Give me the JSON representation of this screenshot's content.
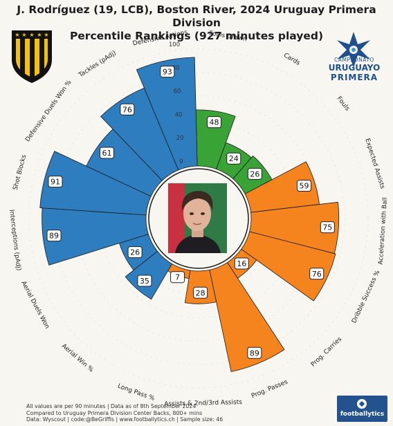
{
  "title_line1": "J. Rodríguez (19, LCB), Boston River, 2024 Uruguay Primera Division",
  "title_line2": "Percentile Rankings (927 minutes played)",
  "footer": {
    "line1": "All values are per 90 minutes | Data as of 8th September 2024",
    "line2": "Compared to Uruguay Primera Division Center Backs, 800+ mins",
    "line3": "Data: Wyscout | code:@BeGriffis | www.footballytics.ch | Sample size: 46"
  },
  "brand": "footballytics",
  "league_logo": {
    "line1": "CAMPEONATO",
    "line2": "URUGUAYO",
    "line3": "PRIMERA"
  },
  "colors": {
    "defending": "#2e7dbf",
    "discipline": "#3aa335",
    "possession": "#f5841f",
    "crest_black": "#111111",
    "crest_yellow": "#f4c20d",
    "league_blue": "#1f4f8e"
  },
  "icons": {
    "club_crest": "shield-crest-icon",
    "league_logo": "star-burst-logo-icon",
    "brand_ball": "football-icon",
    "player_photo": "player-photo"
  },
  "chart_data": {
    "type": "radial-bar",
    "r_ticks": [
      "0",
      "20",
      "40",
      "60",
      "80",
      "100"
    ],
    "rlim": [
      0,
      100
    ],
    "metrics": [
      {
        "label": "Fouls Drawn",
        "value": 48,
        "group": "discipline"
      },
      {
        "label": "Cards",
        "value": 24,
        "group": "discipline"
      },
      {
        "label": "Fouls",
        "value": 26,
        "group": "discipline"
      },
      {
        "label": "Expected Assists",
        "value": 59,
        "group": "possession"
      },
      {
        "label": "Acceleration with Ball",
        "value": 75,
        "group": "possession"
      },
      {
        "label": "Dribble Success %",
        "value": 76,
        "group": "possession"
      },
      {
        "label": "Prog. Carries",
        "value": 16,
        "group": "possession"
      },
      {
        "label": "Prog. Passes",
        "value": 89,
        "group": "possession"
      },
      {
        "label": "Assists & 2nd/3rd Assists",
        "value": 28,
        "group": "possession"
      },
      {
        "label": "Long Pass %",
        "value": 7,
        "group": "possession"
      },
      {
        "label": "Aerial Win %",
        "value": 35,
        "group": "defending"
      },
      {
        "label": "Aerial Duels Won",
        "value": 26,
        "group": "defending"
      },
      {
        "label": "Interceptions (pAdj)",
        "value": 89,
        "group": "defending"
      },
      {
        "label": "Shot Blocks",
        "value": 91,
        "group": "defending"
      },
      {
        "label": "Defensive Duels Won %",
        "value": 61,
        "group": "defending"
      },
      {
        "label": "Tackles (pAdj)",
        "value": 76,
        "group": "defending"
      },
      {
        "label": "Defensive Actions",
        "value": 93,
        "group": "defending"
      }
    ]
  }
}
